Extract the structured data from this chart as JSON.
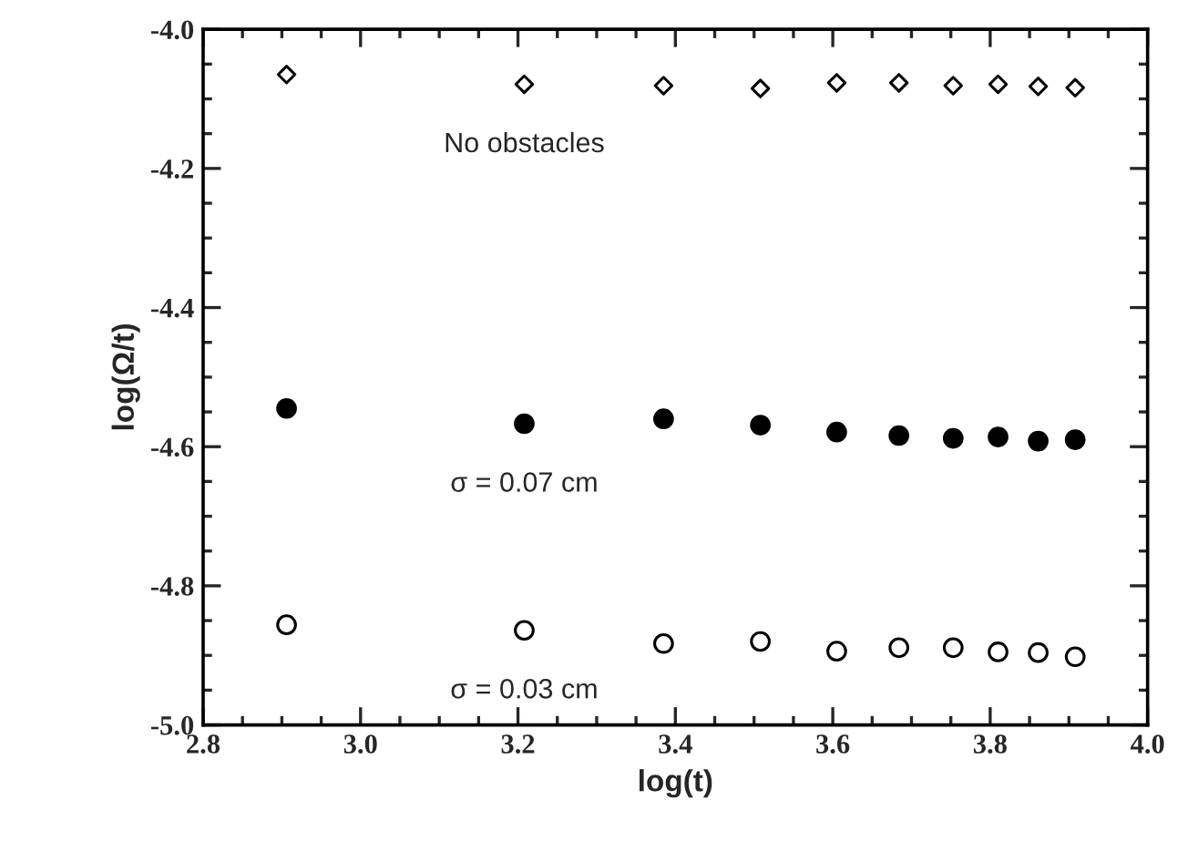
{
  "chart_data": {
    "type": "scatter",
    "xlabel": "log(t)",
    "ylabel": "log(Ω/t)",
    "x": [
      2.906,
      3.208,
      3.385,
      3.508,
      3.605,
      3.684,
      3.753,
      3.81,
      3.861,
      3.908
    ],
    "series": [
      {
        "name": "No obstacles",
        "color": "#ffffff",
        "marker": "diamond",
        "values": [
          -4.065,
          -4.079,
          -4.081,
          -4.085,
          -4.077,
          -4.077,
          -4.081,
          -4.079,
          -4.082,
          -4.084
        ]
      },
      {
        "name": "σ = 0.07 cm",
        "color": "#000000",
        "marker": "circle",
        "values": [
          -4.545,
          -4.567,
          -4.56,
          -4.569,
          -4.579,
          -4.584,
          -4.588,
          -4.586,
          -4.592,
          -4.59
        ]
      },
      {
        "name": "σ = 0.03 cm",
        "color": "#ffffff",
        "marker": "circle",
        "values": [
          -4.856,
          -4.864,
          -4.883,
          -4.88,
          -4.894,
          -4.889,
          -4.889,
          -4.895,
          -4.896,
          -4.902
        ]
      }
    ],
    "xlim": [
      2.8,
      4.0
    ],
    "xticks": [
      {
        "value": 2.8,
        "label": "2.8"
      },
      {
        "value": 3.0,
        "label": "3.0"
      },
      {
        "value": 3.2,
        "label": "3.2"
      },
      {
        "value": 3.4,
        "label": "3.4"
      },
      {
        "value": 3.6,
        "label": "3.6"
      },
      {
        "value": 3.8,
        "label": "3.8"
      },
      {
        "value": 4.0,
        "label": "4.0"
      }
    ],
    "ylim": [
      -5.0,
      -4.0
    ],
    "yticks": [
      {
        "value": -5.0,
        "label": "-5.0"
      },
      {
        "value": -4.8,
        "label": "-4.8"
      },
      {
        "value": -4.6,
        "label": "-4.6"
      },
      {
        "value": -4.4,
        "label": "-4.4"
      },
      {
        "value": -4.2,
        "label": "-4.2"
      },
      {
        "value": -4.0,
        "label": "-4.0"
      }
    ],
    "grid": false,
    "legend": false
  }
}
